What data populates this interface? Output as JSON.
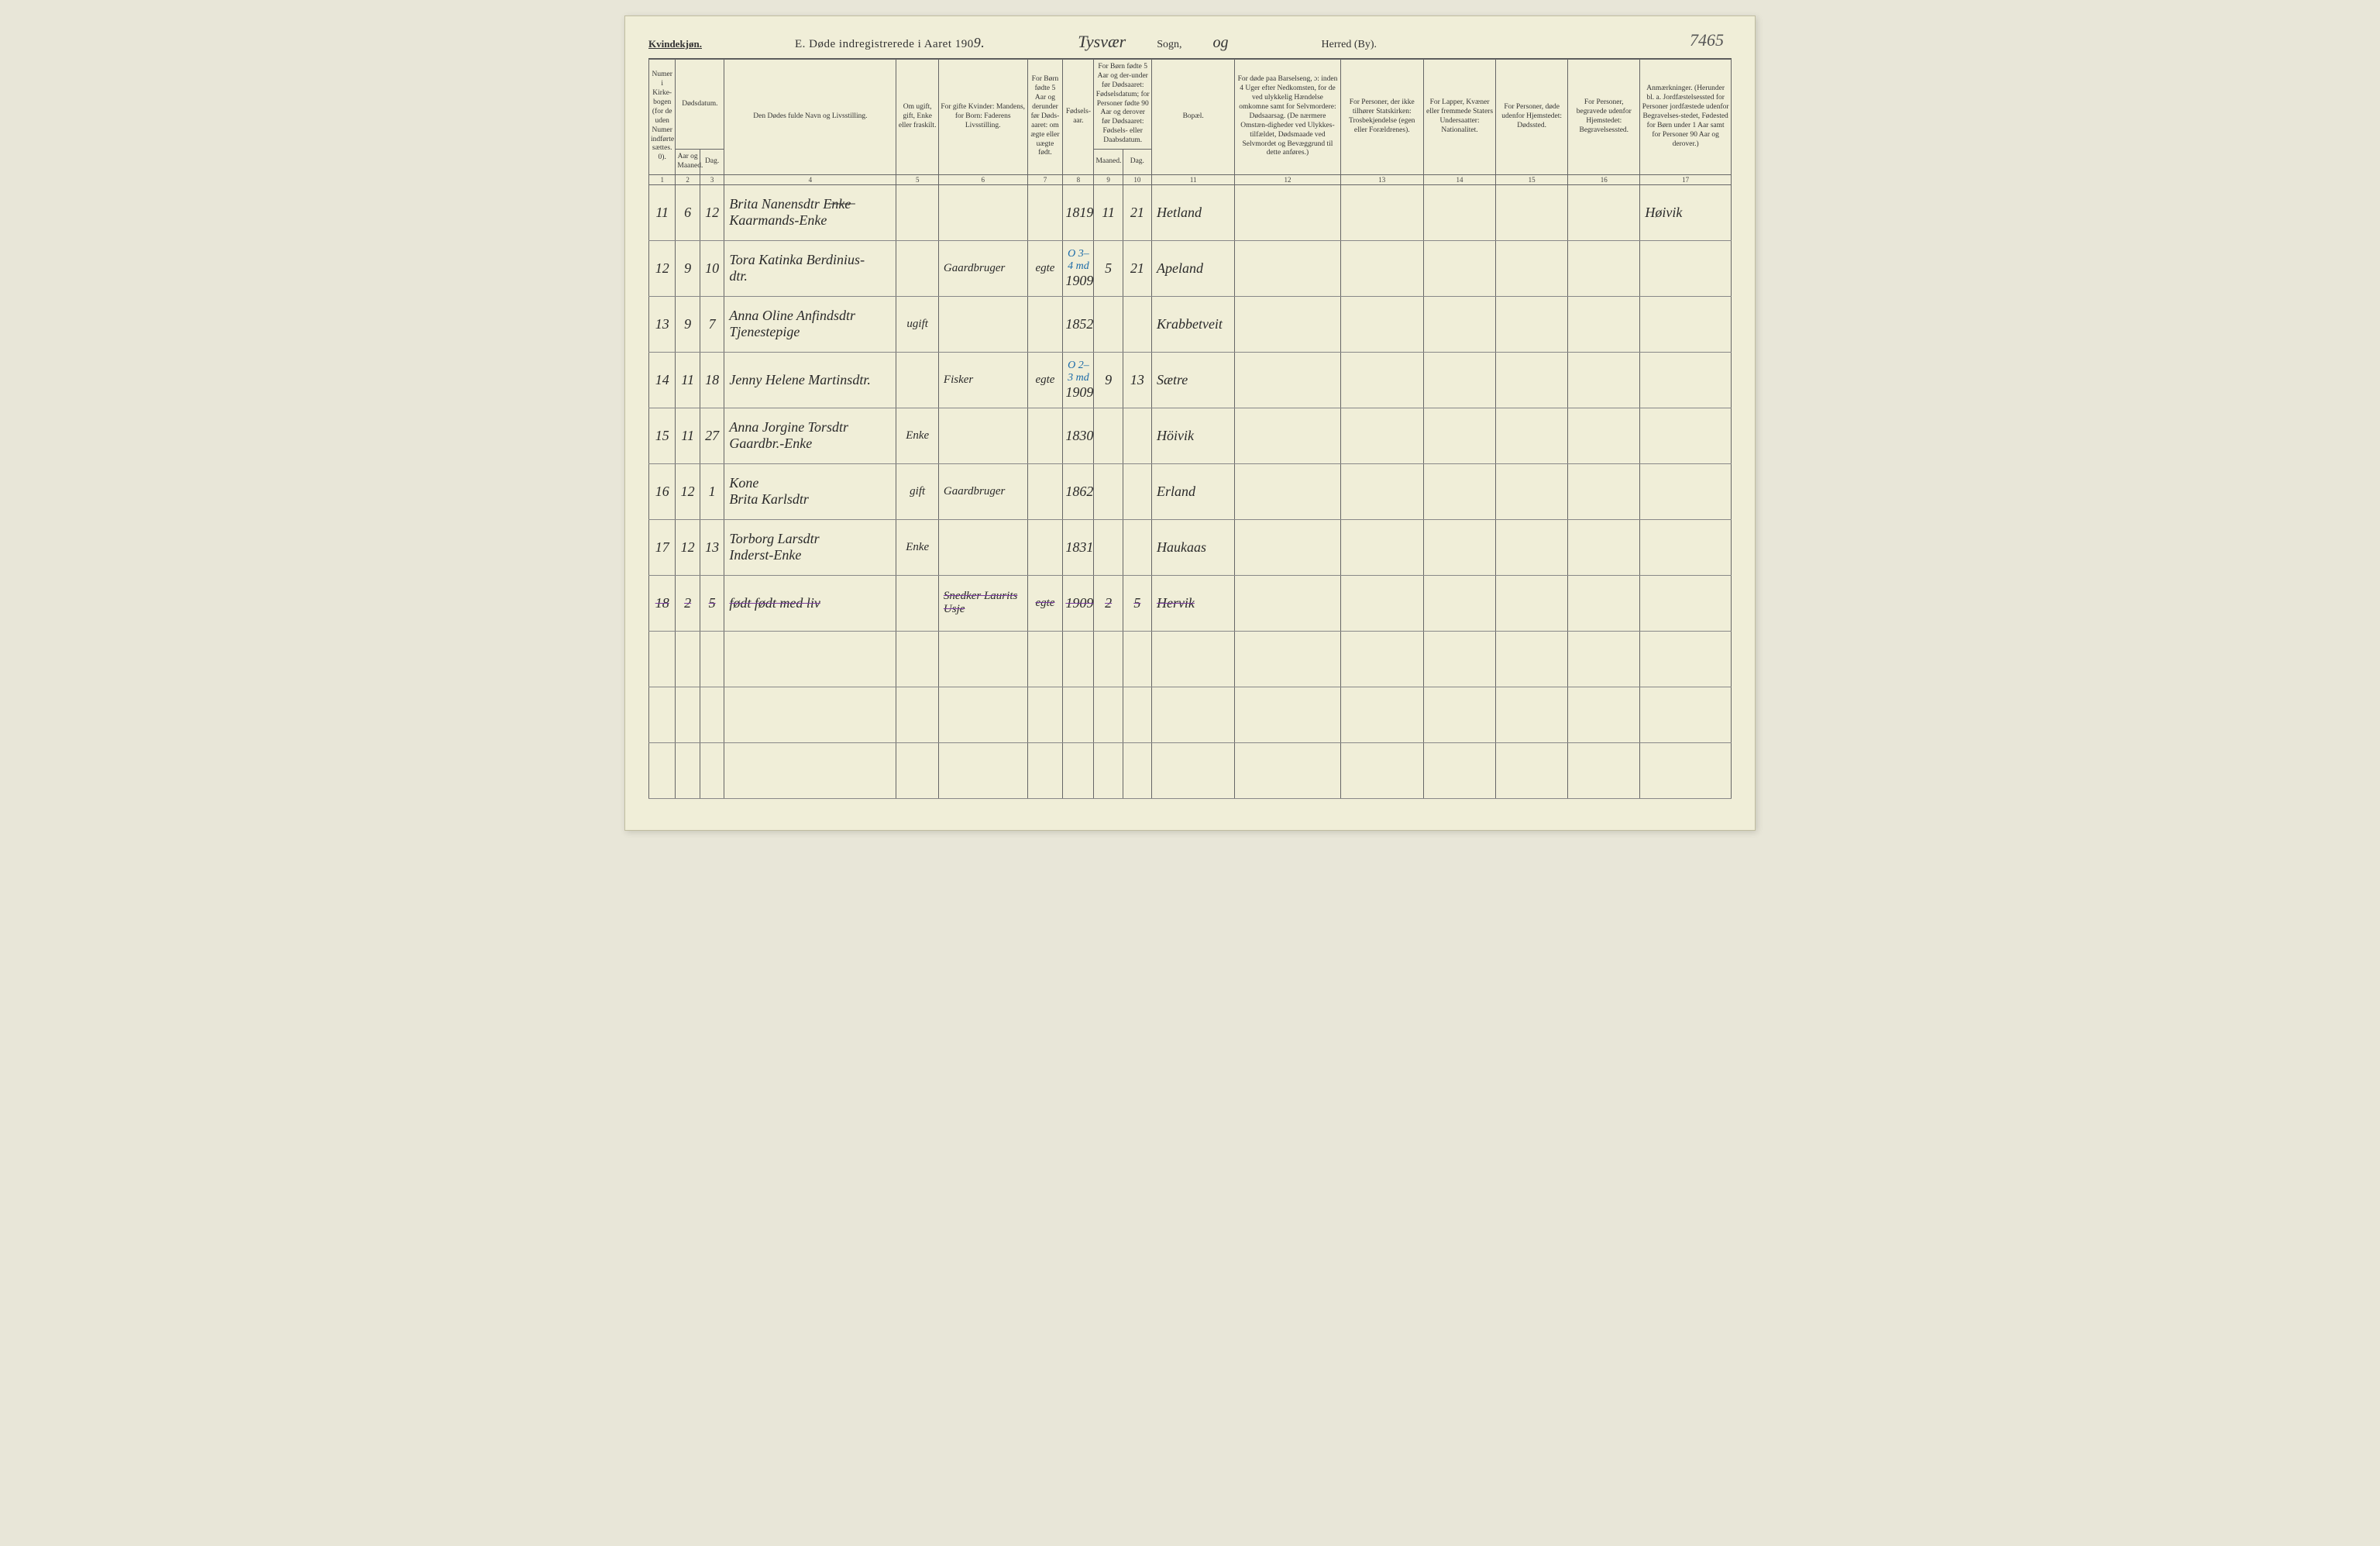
{
  "header": {
    "gender": "Kvindekjøn.",
    "title_prefix": "E.  Døde indregistrerede i Aaret 190",
    "year_suffix": "9.",
    "sogn_hand": "Tysvær",
    "sogn_label": "Sogn,",
    "og": "og",
    "herred_label": "Herred (By).",
    "page_number": "7465"
  },
  "columns": {
    "c1": "Numer i Kirke-bogen (for de uden Numer indførte sættes. 0).",
    "c2_top": "Dødsdatum.",
    "c2a": "Aar og Maaned.",
    "c2b": "Dag.",
    "c4": "Den Dødes fulde Navn og Livsstilling.",
    "c5": "Om ugift, gift, Enke eller fraskilt.",
    "c6": "For gifte Kvinder: Mandens, for Born: Faderens Livsstilling.",
    "c7": "For Børn fødte 5 Aar og derunder før Døds-aaret: om ægte eller uægte født.",
    "c8": "Fødsels-aar.",
    "c9_top": "For Børn fødte 5 Aar og der-under før Dødsaaret: Fødselsdatum; for Personer fødte 90 Aar og derover før Dødsaaret: Fødsels- eller Daabsdatum.",
    "c9a": "Maaned.",
    "c9b": "Dag.",
    "c11": "Bopæl.",
    "c12": "For døde paa Barselseng, ɔ: inden 4 Uger efter Nedkomsten, for de ved ulykkelig Hændelse omkomne samt for Selvmordere: Dødsaarsag. (De nærmere Omstæn-digheder ved Ulykkes-tilfældet, Dødsmaade ved Selvmordet og Bevæggrund til dette anføres.)",
    "c13": "For Personer, der ikke tilhører Statskirken: Trosbekjendelse (egen eller Forældrenes).",
    "c14": "For Lapper, Kvæner eller fremmede Staters Undersaatter: Nationalitet.",
    "c15": "For Personer, døde udenfor Hjemstedet: Dødssted.",
    "c16": "For Personer, begravede udenfor Hjemstedet: Begravelsessted.",
    "c17": "Anmærkninger. (Herunder bl. a. Jordfæstelsessted for Personer jordfæstede udenfor Begravelses-stedet, Fødested for Børn under 1 Aar samt for Personer 90 Aar og derover.)"
  },
  "colnums": [
    "1",
    "2",
    "3",
    "4",
    "5",
    "6",
    "7",
    "8",
    "9",
    "10",
    "11",
    "12",
    "13",
    "14",
    "15",
    "16",
    "17"
  ],
  "rows": [
    {
      "n": "11",
      "mo": "6",
      "day": "12",
      "name": "Brita Nanensdtr  E̶n̶k̶e̶\nKaarmands-Enke",
      "civil": "",
      "father": "",
      "legit": "",
      "byear": "1819",
      "bm": "11",
      "bd": "21",
      "place": "Hetland",
      "note": "",
      "c13": "",
      "c14": "",
      "c15": "",
      "c16": "",
      "c17": "Høivik"
    },
    {
      "n": "12",
      "mo": "9",
      "day": "10",
      "name": "Tora Katinka Berdinius-\ndtr.",
      "civil": "",
      "father": "Gaardbruger",
      "legit": "egte",
      "byear": "1909",
      "bm": "5",
      "bd": "21",
      "place": "Apeland",
      "note": "",
      "c9note": "O 3–4 md",
      "c13": "",
      "c14": "",
      "c15": "",
      "c16": "",
      "c17": ""
    },
    {
      "n": "13",
      "mo": "9",
      "day": "7",
      "name": "Anna Oline Anfindsdtr\nTjenestepige",
      "civil": "ugift",
      "father": "",
      "legit": "",
      "byear": "1852",
      "bm": "",
      "bd": "",
      "place": "Krabbetveit",
      "note": "",
      "c13": "",
      "c14": "",
      "c15": "",
      "c16": "",
      "c17": ""
    },
    {
      "n": "14",
      "mo": "11",
      "day": "18",
      "name": "Jenny Helene Martinsdtr.",
      "civil": "",
      "father": "Fisker",
      "legit": "egte",
      "byear": "1909",
      "bm": "9",
      "bd": "13",
      "place": "Sætre",
      "note": "",
      "c9note": "O 2–3 md",
      "c13": "",
      "c14": "",
      "c15": "",
      "c16": "",
      "c17": ""
    },
    {
      "n": "15",
      "mo": "11",
      "day": "27",
      "name": "Anna Jorgine Torsdtr\nGaardbr.-Enke",
      "civil": "Enke",
      "father": "",
      "legit": "",
      "byear": "1830",
      "bm": "",
      "bd": "",
      "place": "Höivik",
      "note": "",
      "c13": "",
      "c14": "",
      "c15": "",
      "c16": "",
      "c17": ""
    },
    {
      "n": "16",
      "mo": "12",
      "day": "1",
      "name": "Kone\nBrita Karlsdtr",
      "civil": "gift",
      "father": "Gaardbruger",
      "legit": "",
      "byear": "1862",
      "bm": "",
      "bd": "",
      "place": "Erland",
      "note": "",
      "c13": "",
      "c14": "",
      "c15": "",
      "c16": "",
      "c17": ""
    },
    {
      "n": "17",
      "mo": "12",
      "day": "13",
      "name": "Torborg Larsdtr\nInderst-Enke",
      "civil": "Enke",
      "father": "",
      "legit": "",
      "byear": "1831",
      "bm": "",
      "bd": "",
      "place": "Haukaas",
      "note": "",
      "c13": "",
      "c14": "",
      "c15": "",
      "c16": "",
      "c17": ""
    },
    {
      "n": "18",
      "mo": "2",
      "day": "5",
      "name": "født født med liv",
      "civil": "",
      "father": "Snedker Laurits Usje",
      "legit": "egte",
      "byear": "1909",
      "bm": "2",
      "bd": "5",
      "place": "Hervik",
      "note": "",
      "struck": true,
      "c13": "",
      "c14": "",
      "c15": "",
      "c16": "",
      "c17": ""
    }
  ],
  "blank_rows": 3
}
